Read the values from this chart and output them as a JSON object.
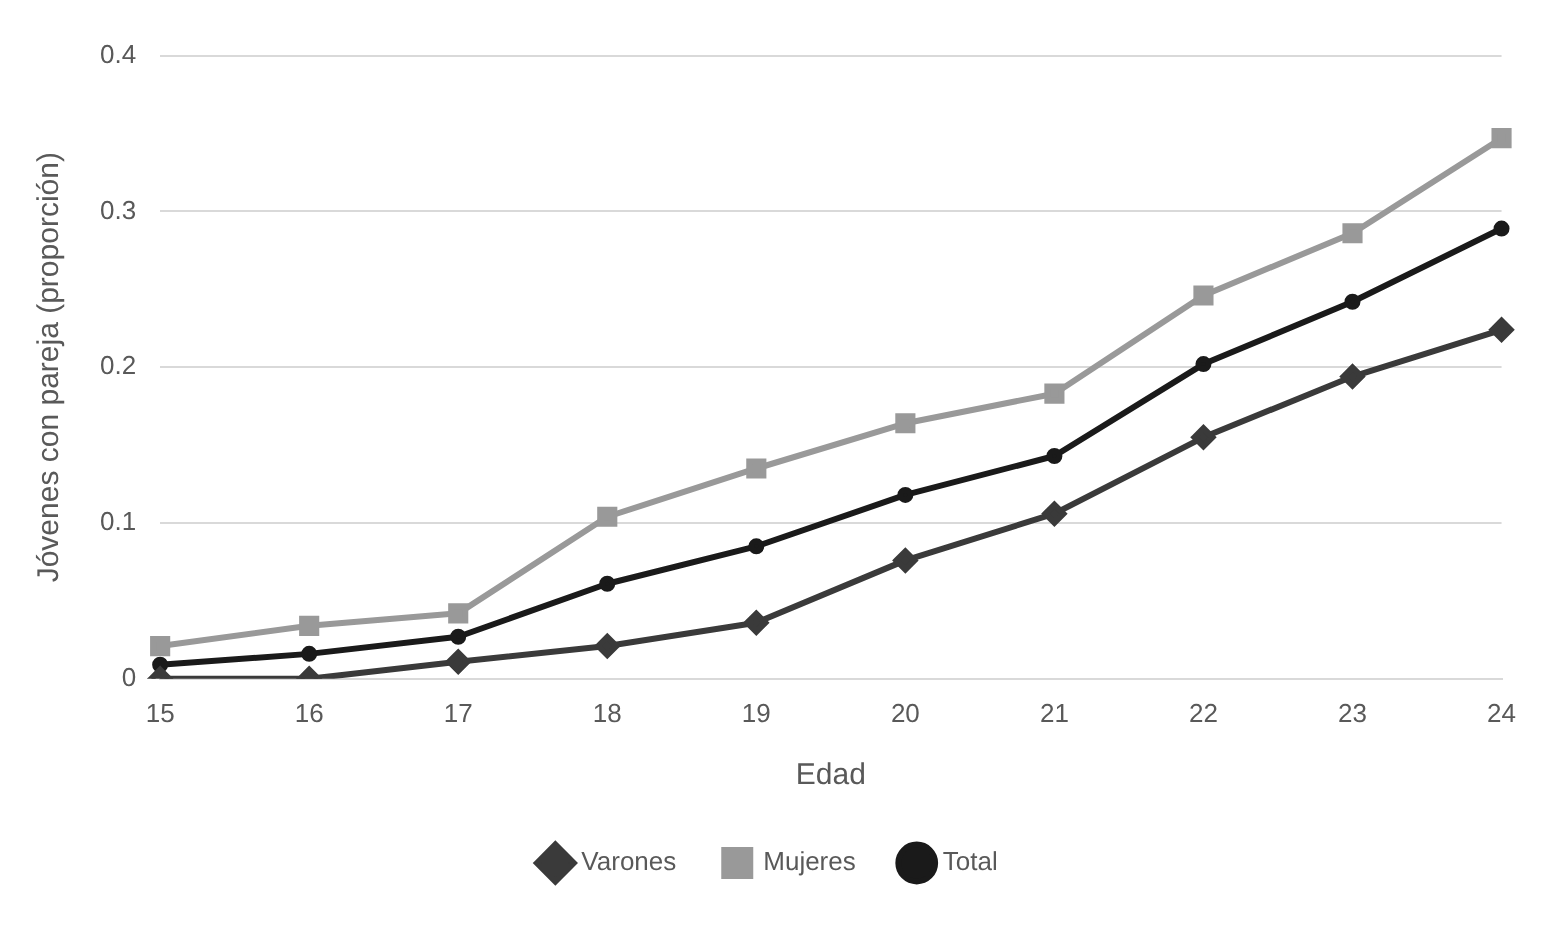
{
  "chart_data": {
    "type": "line",
    "xlabel": "Edad",
    "ylabel": "Jóvenes con pareja (proporción)",
    "categories": [
      "15",
      "16",
      "17",
      "18",
      "19",
      "20",
      "21",
      "22",
      "23",
      "24"
    ],
    "series": [
      {
        "name": "Varones",
        "color": "#3a3a3a",
        "marker": "diamond",
        "values": [
          0,
          0,
          0.011,
          0.021,
          0.036,
          0.076,
          0.106,
          0.155,
          0.194,
          0.224
        ]
      },
      {
        "name": "Mujeres",
        "color": "#999999",
        "marker": "square",
        "values": [
          0.021,
          0.034,
          0.042,
          0.104,
          0.135,
          0.164,
          0.183,
          0.246,
          0.286,
          0.347
        ]
      },
      {
        "name": "Total",
        "color": "#1a1a1a",
        "marker": "circle",
        "values": [
          0.009,
          0.016,
          0.027,
          0.061,
          0.085,
          0.118,
          0.143,
          0.202,
          0.242,
          0.289
        ]
      }
    ],
    "ylim": [
      0,
      0.4
    ],
    "yticks": [
      0,
      0.1,
      0.2,
      0.3,
      0.4
    ],
    "grid": "y",
    "legend": "bottom",
    "line_style": "solid"
  }
}
